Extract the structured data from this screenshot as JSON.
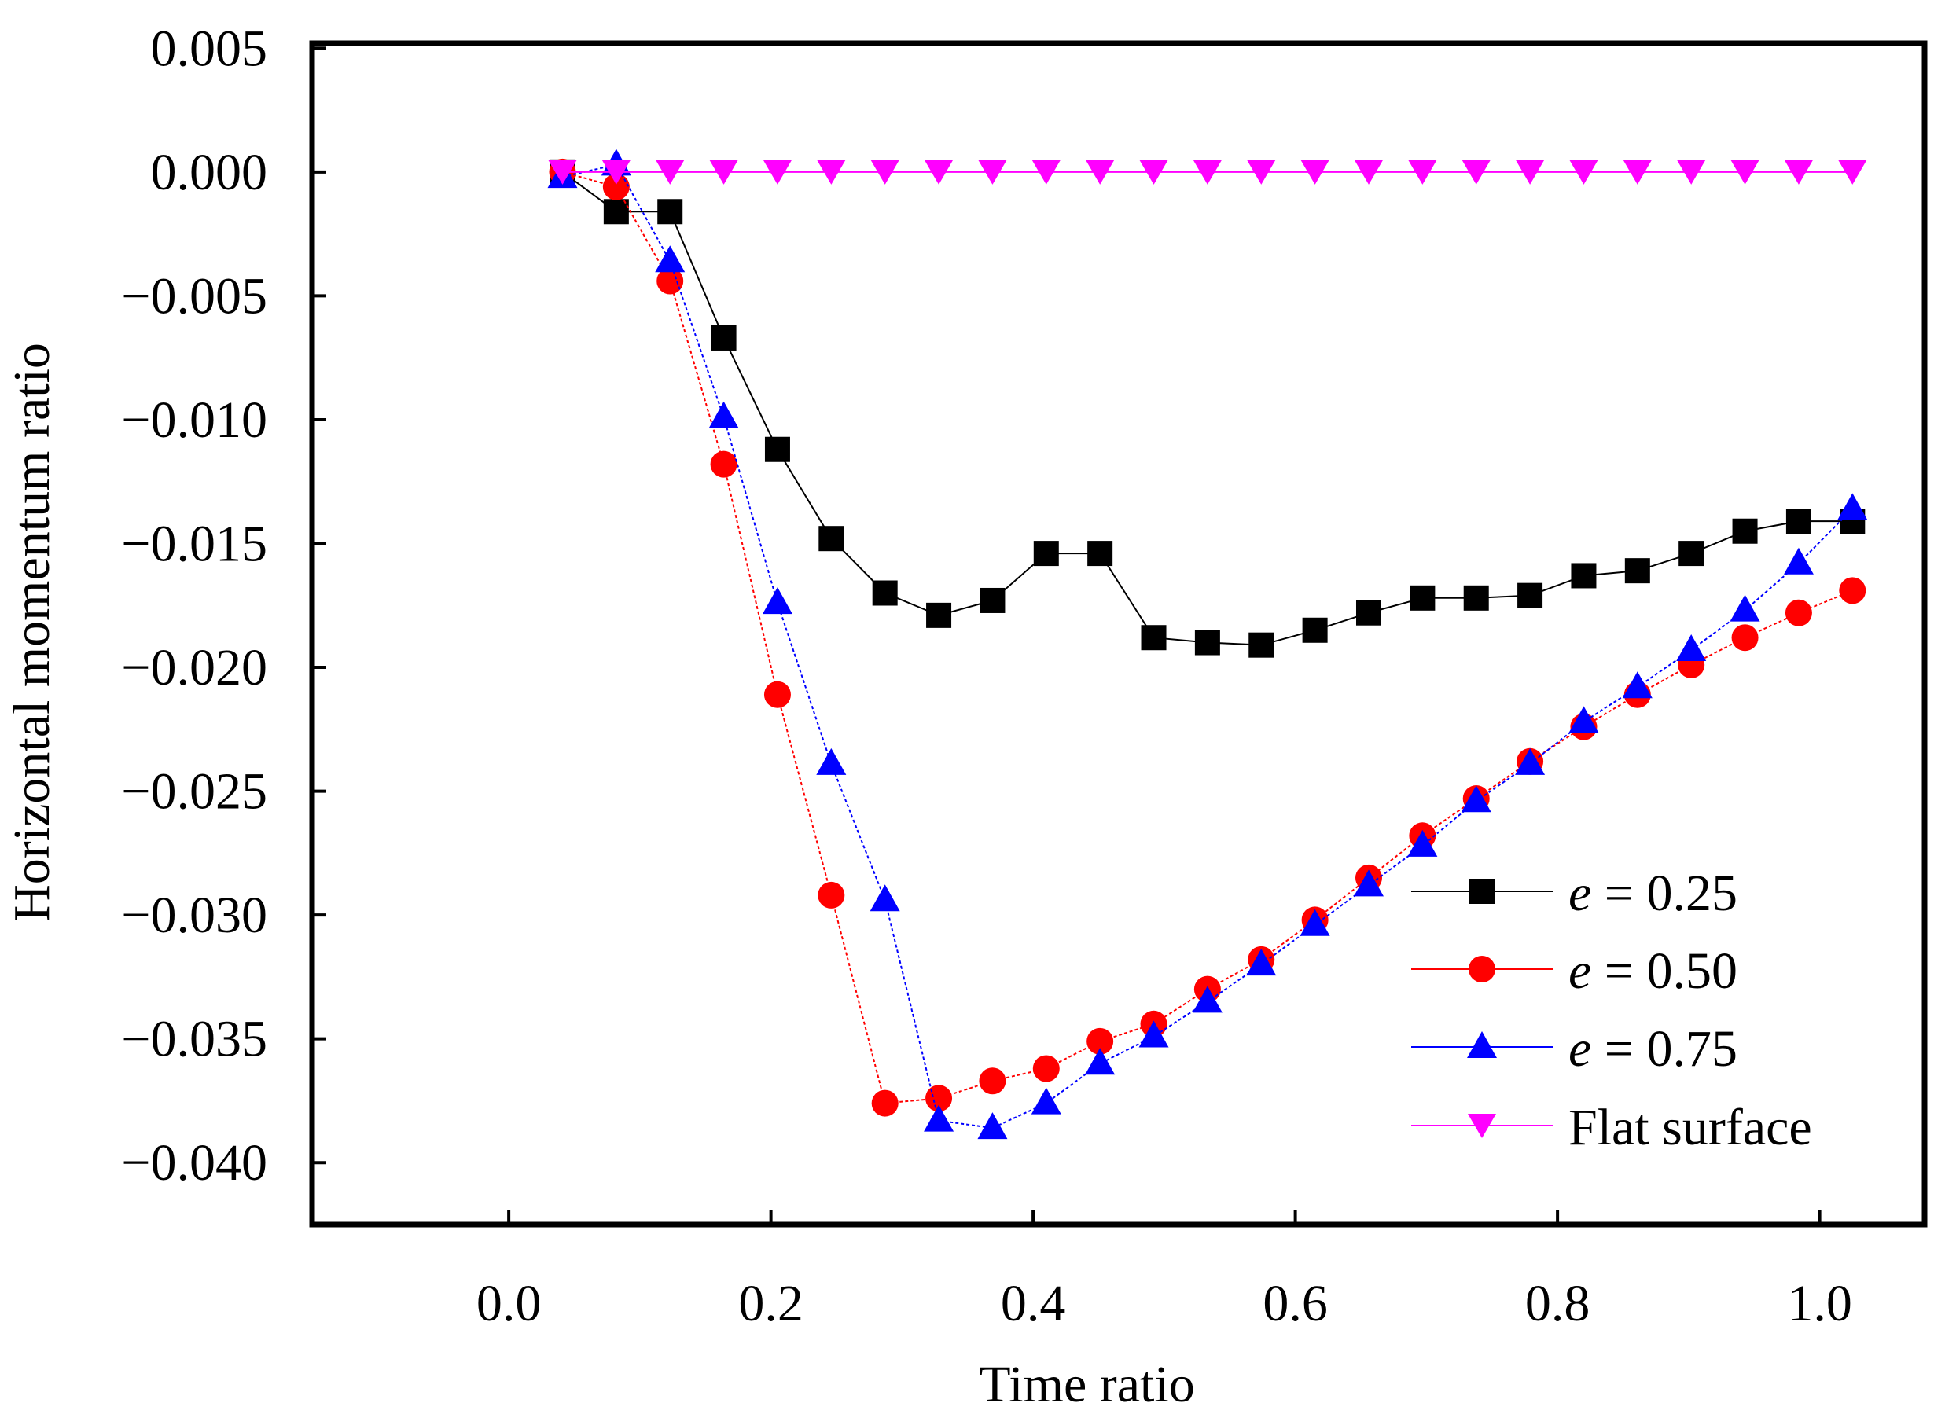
{
  "chart_data": {
    "type": "line",
    "title": "",
    "xlabel": "Time ratio",
    "ylabel": "Horizontal momentum ratio",
    "xlim": [
      -0.15,
      1.08
    ],
    "ylim": [
      -0.0425,
      0.0052
    ],
    "xticks": [
      0.0,
      0.2,
      0.4,
      0.6,
      0.8,
      1.0
    ],
    "xtick_labels": [
      "0.0",
      "0.2",
      "0.4",
      "0.6",
      "0.8",
      "1.0"
    ],
    "yticks": [
      0.005,
      0.0,
      -0.005,
      -0.01,
      -0.015,
      -0.02,
      -0.025,
      -0.03,
      -0.035,
      -0.04
    ],
    "ytick_labels": [
      "0.005",
      "0.000",
      "−0.005",
      "−0.010",
      "−0.015",
      "−0.020",
      "−0.025",
      "−0.030",
      "−0.035",
      "−0.040"
    ],
    "grid": false,
    "legend_position": "bottom-right",
    "x": [
      0.041,
      0.082,
      0.123,
      0.164,
      0.205,
      0.246,
      0.287,
      0.328,
      0.369,
      0.41,
      0.451,
      0.492,
      0.533,
      0.574,
      0.615,
      0.656,
      0.697,
      0.738,
      0.779,
      0.82,
      0.861,
      0.902,
      0.943,
      0.984,
      1.025
    ],
    "series": [
      {
        "name": "e = 0.25",
        "legend_prefix": "e",
        "legend_suffix": " = 0.25",
        "color": "#000000",
        "marker": "square",
        "values": [
          0.0,
          -0.0016,
          -0.0016,
          -0.0067,
          -0.0112,
          -0.0148,
          -0.017,
          -0.0179,
          -0.0173,
          -0.0154,
          -0.0154,
          -0.0188,
          -0.019,
          -0.0191,
          -0.0185,
          -0.0178,
          -0.0172,
          -0.0172,
          -0.0171,
          -0.0163,
          -0.0161,
          -0.0154,
          -0.0145,
          -0.0141,
          -0.0141
        ]
      },
      {
        "name": "e = 0.50",
        "legend_prefix": "e",
        "legend_suffix": " = 0.50",
        "color": "#ff0000",
        "marker": "circle",
        "values": [
          0.0,
          -0.0006,
          -0.0044,
          -0.0118,
          -0.0211,
          -0.0292,
          -0.0376,
          -0.0374,
          -0.0367,
          -0.0362,
          -0.0351,
          -0.0344,
          -0.033,
          -0.0318,
          -0.0302,
          -0.0285,
          -0.0268,
          -0.0253,
          -0.0238,
          -0.0224,
          -0.0211,
          -0.0199,
          -0.0188,
          -0.0178,
          -0.0169
        ]
      },
      {
        "name": "e = 0.75",
        "legend_prefix": "e",
        "legend_suffix": " = 0.75",
        "color": "#0000ff",
        "marker": "triangle-up",
        "values": [
          -0.0002,
          0.0003,
          -0.0036,
          -0.0099,
          -0.0174,
          -0.0239,
          -0.0294,
          -0.0383,
          -0.0386,
          -0.0376,
          -0.036,
          -0.0349,
          -0.0335,
          -0.032,
          -0.0304,
          -0.0288,
          -0.0272,
          -0.0254,
          -0.0239,
          -0.0222,
          -0.0208,
          -0.0193,
          -0.0177,
          -0.0158,
          -0.0136
        ]
      },
      {
        "name": "Flat surface",
        "legend_prefix": "",
        "legend_suffix": "Flat surface",
        "color": "#ff00ff",
        "marker": "triangle-down",
        "values": [
          0.0,
          0.0,
          0.0,
          0.0,
          0.0,
          0.0,
          0.0,
          0.0,
          0.0,
          0.0,
          0.0,
          0.0,
          0.0,
          0.0,
          0.0,
          0.0,
          0.0,
          0.0,
          0.0,
          0.0,
          0.0,
          0.0,
          0.0,
          0.0,
          0.0
        ]
      }
    ]
  }
}
